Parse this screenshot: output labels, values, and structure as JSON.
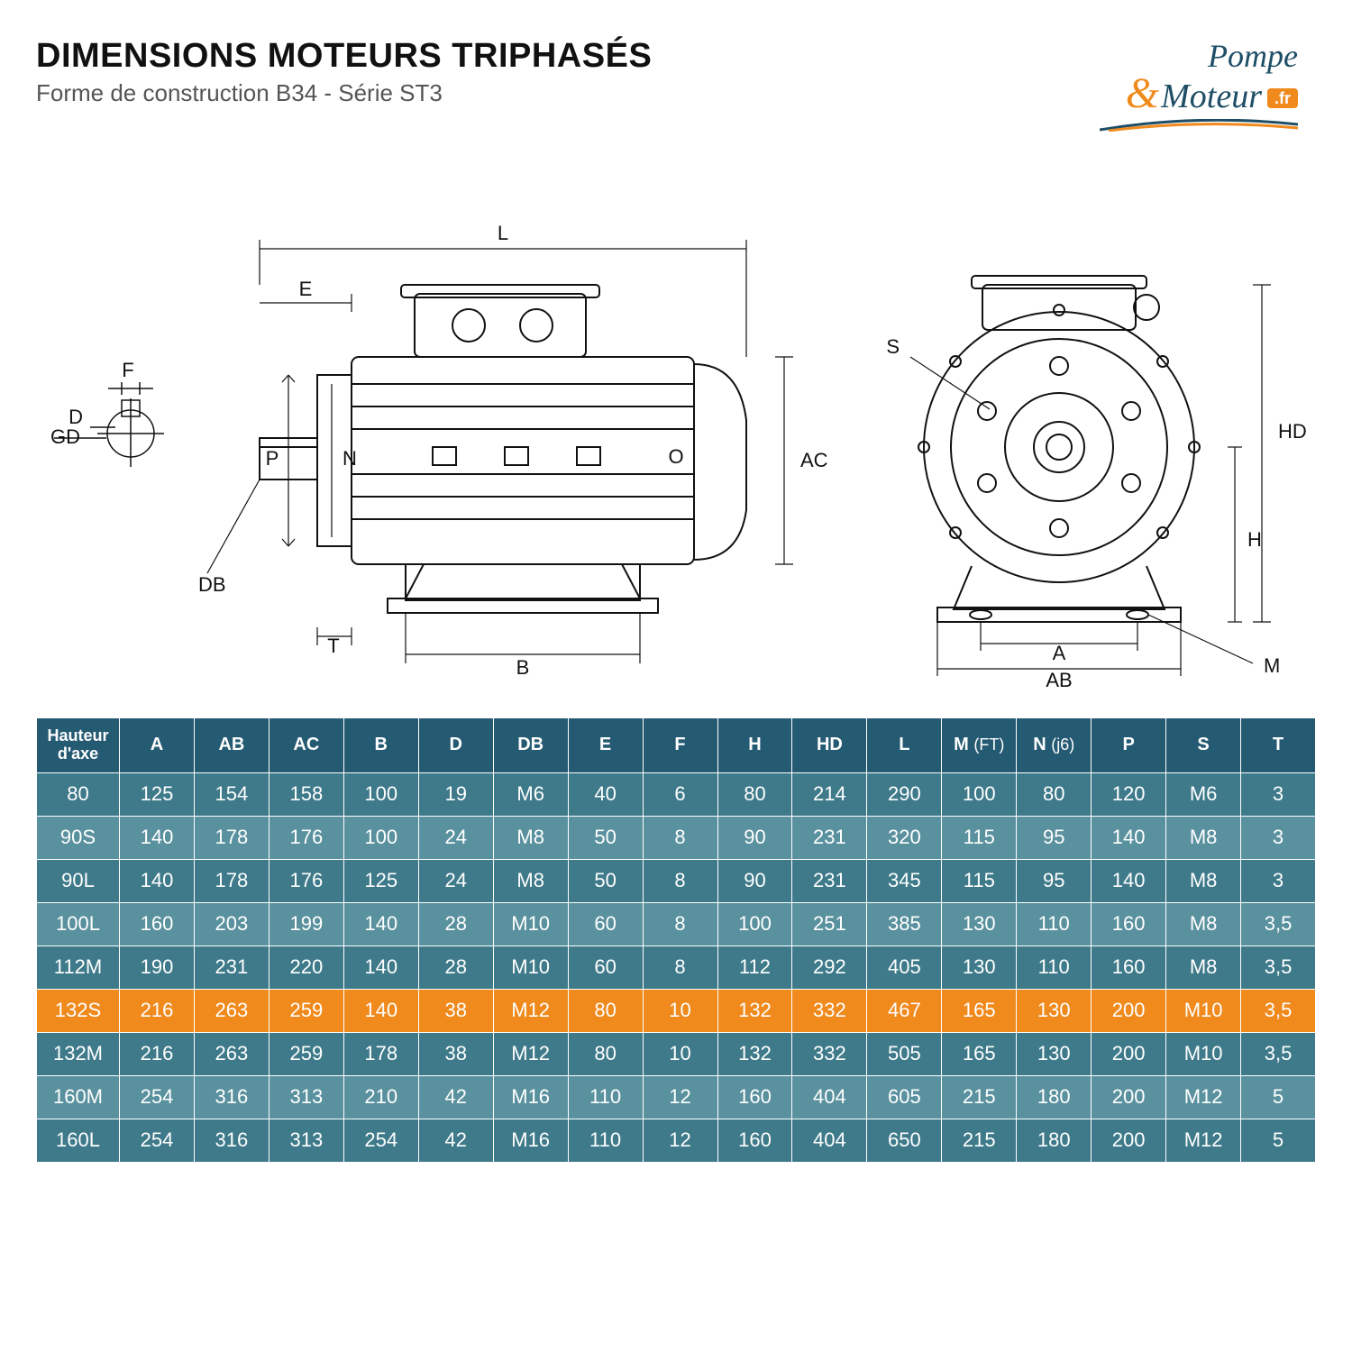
{
  "title": "DIMENSIONS MOTEURS TRIPHASÉS",
  "subtitle": "Forme de construction B34 - Série ST3",
  "logo": {
    "line1": "Pompe",
    "line2": "Moteur",
    "amp": "&",
    "badge": ".fr"
  },
  "diagram": {
    "labels": [
      "L",
      "E",
      "F",
      "GD",
      "D",
      "DB",
      "P",
      "N",
      "T",
      "B",
      "O",
      "AC",
      "S",
      "HD",
      "H",
      "A",
      "AB",
      "M"
    ],
    "stroke": "#111111",
    "bg": "#ffffff",
    "font": 22
  },
  "table": {
    "header_bg": "#255a73",
    "row_bg_a": "#3e7a8a",
    "row_bg_b": "#5a919e",
    "highlight_bg": "#f08a1d",
    "text_color": "#ffffff",
    "columns": [
      "Hauteur d'axe",
      "A",
      "AB",
      "AC",
      "B",
      "D",
      "DB",
      "E",
      "F",
      "H",
      "HD",
      "L",
      "M (FT)",
      "N (j6)",
      "P",
      "S",
      "T"
    ],
    "rows": [
      {
        "hl": false,
        "cells": [
          "80",
          "125",
          "154",
          "158",
          "100",
          "19",
          "M6",
          "40",
          "6",
          "80",
          "214",
          "290",
          "100",
          "80",
          "120",
          "M6",
          "3"
        ]
      },
      {
        "hl": false,
        "cells": [
          "90S",
          "140",
          "178",
          "176",
          "100",
          "24",
          "M8",
          "50",
          "8",
          "90",
          "231",
          "320",
          "115",
          "95",
          "140",
          "M8",
          "3"
        ]
      },
      {
        "hl": false,
        "cells": [
          "90L",
          "140",
          "178",
          "176",
          "125",
          "24",
          "M8",
          "50",
          "8",
          "90",
          "231",
          "345",
          "115",
          "95",
          "140",
          "M8",
          "3"
        ]
      },
      {
        "hl": false,
        "cells": [
          "100L",
          "160",
          "203",
          "199",
          "140",
          "28",
          "M10",
          "60",
          "8",
          "100",
          "251",
          "385",
          "130",
          "110",
          "160",
          "M8",
          "3,5"
        ]
      },
      {
        "hl": false,
        "cells": [
          "112M",
          "190",
          "231",
          "220",
          "140",
          "28",
          "M10",
          "60",
          "8",
          "112",
          "292",
          "405",
          "130",
          "110",
          "160",
          "M8",
          "3,5"
        ]
      },
      {
        "hl": true,
        "cells": [
          "132S",
          "216",
          "263",
          "259",
          "140",
          "38",
          "M12",
          "80",
          "10",
          "132",
          "332",
          "467",
          "165",
          "130",
          "200",
          "M10",
          "3,5"
        ]
      },
      {
        "hl": false,
        "cells": [
          "132M",
          "216",
          "263",
          "259",
          "178",
          "38",
          "M12",
          "80",
          "10",
          "132",
          "332",
          "505",
          "165",
          "130",
          "200",
          "M10",
          "3,5"
        ]
      },
      {
        "hl": false,
        "cells": [
          "160M",
          "254",
          "316",
          "313",
          "210",
          "42",
          "M16",
          "110",
          "12",
          "160",
          "404",
          "605",
          "215",
          "180",
          "200",
          "M12",
          "5"
        ]
      },
      {
        "hl": false,
        "cells": [
          "160L",
          "254",
          "316",
          "313",
          "254",
          "42",
          "M16",
          "110",
          "12",
          "160",
          "404",
          "650",
          "215",
          "180",
          "200",
          "M12",
          "5"
        ]
      }
    ]
  }
}
